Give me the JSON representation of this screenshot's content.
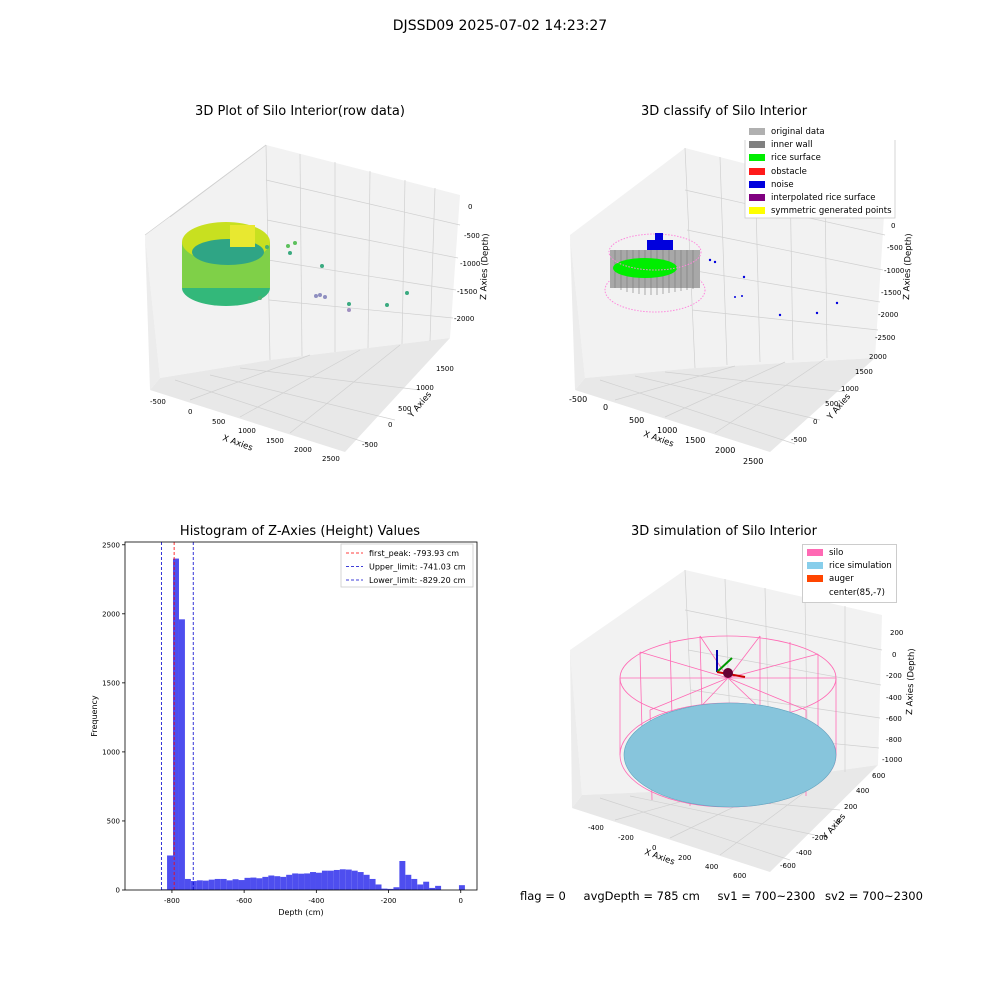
{
  "suptitle": "DJSSD09 2025-07-02 14:23:27",
  "panels": {
    "raw": {
      "title": "3D Plot of Silo Interior(row data)",
      "xlabel": "X Axies",
      "ylabel": "Y Axies",
      "zlabel": "Z Axies (Depth)",
      "xticks": [
        "-500",
        "0",
        "500",
        "1000",
        "1500",
        "2000",
        "2500"
      ],
      "yticks": [
        "-500",
        "0",
        "500",
        "1000",
        "1500"
      ],
      "zticks": [
        "0",
        "-500",
        "-1000",
        "-1500",
        "-2000"
      ]
    },
    "classify": {
      "title": "3D classify of Silo Interior",
      "xlabel": "X Axies",
      "ylabel": "Y Axies",
      "zlabel": "Z Axies (Depth)",
      "xticks": [
        "-500",
        "0",
        "500",
        "1000",
        "1500",
        "2000",
        "2500"
      ],
      "yticks": [
        "-500",
        "0",
        "500",
        "1000",
        "1500",
        "2000"
      ],
      "zticks": [
        "0",
        "-500",
        "-1000",
        "-1500",
        "-2000",
        "-2500"
      ],
      "legend": [
        {
          "label": "original data",
          "color": "#b0b0b0"
        },
        {
          "label": "inner wall",
          "color": "#808080"
        },
        {
          "label": "rice surface",
          "color": "#00ee00"
        },
        {
          "label": "obstacle",
          "color": "#ff1a1a"
        },
        {
          "label": "noise",
          "color": "#0000dd"
        },
        {
          "label": "interpolated rice surface",
          "color": "#800080"
        },
        {
          "label": "symmetric generated points",
          "color": "#ffff00"
        }
      ]
    },
    "simulation": {
      "title": "3D simulation of Silo Interior",
      "xlabel": "X Axies",
      "ylabel": "Y Axies",
      "zlabel": "Z Axies (Depth)",
      "xticks": [
        "-400",
        "-200",
        "0",
        "200",
        "400",
        "600"
      ],
      "yticks": [
        "-600",
        "-400",
        "-200",
        "0",
        "200",
        "400",
        "600"
      ],
      "zticks": [
        "200",
        "0",
        "-200",
        "-400",
        "-600",
        "-800",
        "-1000"
      ],
      "legend": [
        {
          "label": "silo",
          "color": "#ff69b4"
        },
        {
          "label": "rice simulation",
          "color": "#87ceeb"
        },
        {
          "label": "auger",
          "color": "#ff4500"
        },
        {
          "label": "center(85,-7)",
          "color": ""
        }
      ]
    }
  },
  "chart_data": {
    "type": "bar",
    "title": "Histogram of Z-Axies (Height) Values",
    "xlabel": "Depth (cm)",
    "ylabel": "Frequency",
    "xlim": [
      -930,
      45
    ],
    "ylim": [
      0,
      2520
    ],
    "bar_color": "#4444ee",
    "bin_width": 16.5,
    "bins_left_edges": [
      -830,
      -813.5,
      -797,
      -780.5,
      -764,
      -747.5,
      -731,
      -714.5,
      -698,
      -681.5,
      -665,
      -648.5,
      -632,
      -615.5,
      -599,
      -582.5,
      -566,
      -549.5,
      -533,
      -516.5,
      -500,
      -483.5,
      -467,
      -450.5,
      -434,
      -417.5,
      -401,
      -384.5,
      -368,
      -351.5,
      -335,
      -318.5,
      -302,
      -285.5,
      -269,
      -252.5,
      -236,
      -219.5,
      -203,
      -186.5,
      -170,
      -153.5,
      -137,
      -120.5,
      -104,
      -87.5,
      -71,
      -54.5,
      -38,
      -21.5,
      -5
    ],
    "values": [
      5,
      250,
      2400,
      1960,
      80,
      65,
      70,
      68,
      75,
      80,
      80,
      70,
      78,
      72,
      88,
      90,
      85,
      95,
      105,
      100,
      95,
      110,
      120,
      118,
      120,
      130,
      125,
      140,
      140,
      145,
      150,
      148,
      140,
      130,
      110,
      80,
      40,
      10,
      8,
      20,
      210,
      110,
      80,
      40,
      60,
      15,
      30,
      0,
      0,
      0,
      35
    ],
    "xticks": [
      -800,
      -600,
      -400,
      -200,
      0
    ],
    "yticks": [
      0,
      500,
      1000,
      1500,
      2000,
      2500
    ],
    "vlines": [
      {
        "x": -793.93,
        "color": "#ff0000",
        "label": "first_peak: -793.93 cm"
      },
      {
        "x": -741.03,
        "color": "#0000cc",
        "label": "Upper_limit: -741.03 cm"
      },
      {
        "x": -829.2,
        "color": "#0000cc",
        "label": "Lower_limit: -829.20 cm"
      }
    ],
    "legend_position": "top-right"
  },
  "status": {
    "flag": "flag = 0",
    "avg": "avgDepth = 785 cm",
    "sv1": "sv1 = 700~2300",
    "sv2": "sv2 = 700~2300"
  }
}
